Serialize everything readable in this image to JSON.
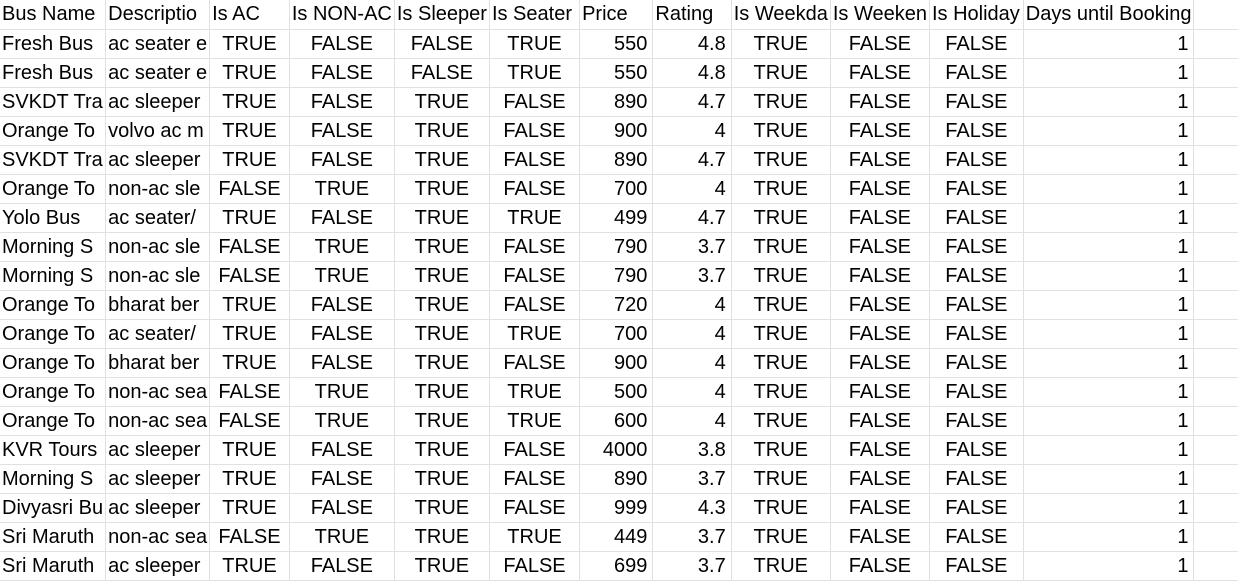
{
  "headers": [
    "Bus Name",
    "Descriptio",
    "Is AC",
    "Is NON-AC",
    "Is Sleeper",
    "Is Seater",
    "Price",
    "Rating",
    "Is Weekda",
    "Is Weeken",
    "Is Holiday",
    "Days until Booking",
    ""
  ],
  "rows": [
    [
      "Fresh Bus",
      "ac seater e",
      "TRUE",
      "FALSE",
      "FALSE",
      "TRUE",
      "550",
      "4.8",
      "TRUE",
      "FALSE",
      "FALSE",
      "1",
      ""
    ],
    [
      "Fresh Bus",
      "ac seater e",
      "TRUE",
      "FALSE",
      "FALSE",
      "TRUE",
      "550",
      "4.8",
      "TRUE",
      "FALSE",
      "FALSE",
      "1",
      ""
    ],
    [
      "SVKDT Tra",
      "ac sleeper",
      "TRUE",
      "FALSE",
      "TRUE",
      "FALSE",
      "890",
      "4.7",
      "TRUE",
      "FALSE",
      "FALSE",
      "1",
      ""
    ],
    [
      "Orange To",
      "volvo ac m",
      "TRUE",
      "FALSE",
      "TRUE",
      "FALSE",
      "900",
      "4",
      "TRUE",
      "FALSE",
      "FALSE",
      "1",
      ""
    ],
    [
      "SVKDT Tra",
      "ac sleeper",
      "TRUE",
      "FALSE",
      "TRUE",
      "FALSE",
      "890",
      "4.7",
      "TRUE",
      "FALSE",
      "FALSE",
      "1",
      ""
    ],
    [
      "Orange To",
      "non-ac sle",
      "FALSE",
      "TRUE",
      "TRUE",
      "FALSE",
      "700",
      "4",
      "TRUE",
      "FALSE",
      "FALSE",
      "1",
      ""
    ],
    [
      "Yolo Bus",
      "ac seater/",
      "TRUE",
      "FALSE",
      "TRUE",
      "TRUE",
      "499",
      "4.7",
      "TRUE",
      "FALSE",
      "FALSE",
      "1",
      ""
    ],
    [
      "Morning S",
      "non-ac sle",
      "FALSE",
      "TRUE",
      "TRUE",
      "FALSE",
      "790",
      "3.7",
      "TRUE",
      "FALSE",
      "FALSE",
      "1",
      ""
    ],
    [
      "Morning S",
      "non-ac sle",
      "FALSE",
      "TRUE",
      "TRUE",
      "FALSE",
      "790",
      "3.7",
      "TRUE",
      "FALSE",
      "FALSE",
      "1",
      ""
    ],
    [
      "Orange To",
      "bharat ber",
      "TRUE",
      "FALSE",
      "TRUE",
      "FALSE",
      "720",
      "4",
      "TRUE",
      "FALSE",
      "FALSE",
      "1",
      ""
    ],
    [
      "Orange To",
      "ac seater/",
      "TRUE",
      "FALSE",
      "TRUE",
      "TRUE",
      "700",
      "4",
      "TRUE",
      "FALSE",
      "FALSE",
      "1",
      ""
    ],
    [
      "Orange To",
      "bharat ber",
      "TRUE",
      "FALSE",
      "TRUE",
      "FALSE",
      "900",
      "4",
      "TRUE",
      "FALSE",
      "FALSE",
      "1",
      ""
    ],
    [
      "Orange To",
      "non-ac sea",
      "FALSE",
      "TRUE",
      "TRUE",
      "TRUE",
      "500",
      "4",
      "TRUE",
      "FALSE",
      "FALSE",
      "1",
      ""
    ],
    [
      "Orange To",
      "non-ac sea",
      "FALSE",
      "TRUE",
      "TRUE",
      "TRUE",
      "600",
      "4",
      "TRUE",
      "FALSE",
      "FALSE",
      "1",
      ""
    ],
    [
      "KVR Tours",
      "ac sleeper",
      "TRUE",
      "FALSE",
      "TRUE",
      "FALSE",
      "4000",
      "3.8",
      "TRUE",
      "FALSE",
      "FALSE",
      "1",
      ""
    ],
    [
      "Morning S",
      "ac sleeper",
      "TRUE",
      "FALSE",
      "TRUE",
      "FALSE",
      "890",
      "3.7",
      "TRUE",
      "FALSE",
      "FALSE",
      "1",
      ""
    ],
    [
      "Divyasri Bu",
      "ac sleeper",
      "TRUE",
      "FALSE",
      "TRUE",
      "FALSE",
      "999",
      "4.3",
      "TRUE",
      "FALSE",
      "FALSE",
      "1",
      ""
    ],
    [
      "Sri Maruth",
      "non-ac sea",
      "FALSE",
      "TRUE",
      "TRUE",
      "TRUE",
      "449",
      "3.7",
      "TRUE",
      "FALSE",
      "FALSE",
      "1",
      ""
    ],
    [
      "Sri Maruth",
      "ac sleeper",
      "TRUE",
      "FALSE",
      "TRUE",
      "FALSE",
      "699",
      "3.7",
      "TRUE",
      "FALSE",
      "FALSE",
      "1",
      ""
    ]
  ]
}
